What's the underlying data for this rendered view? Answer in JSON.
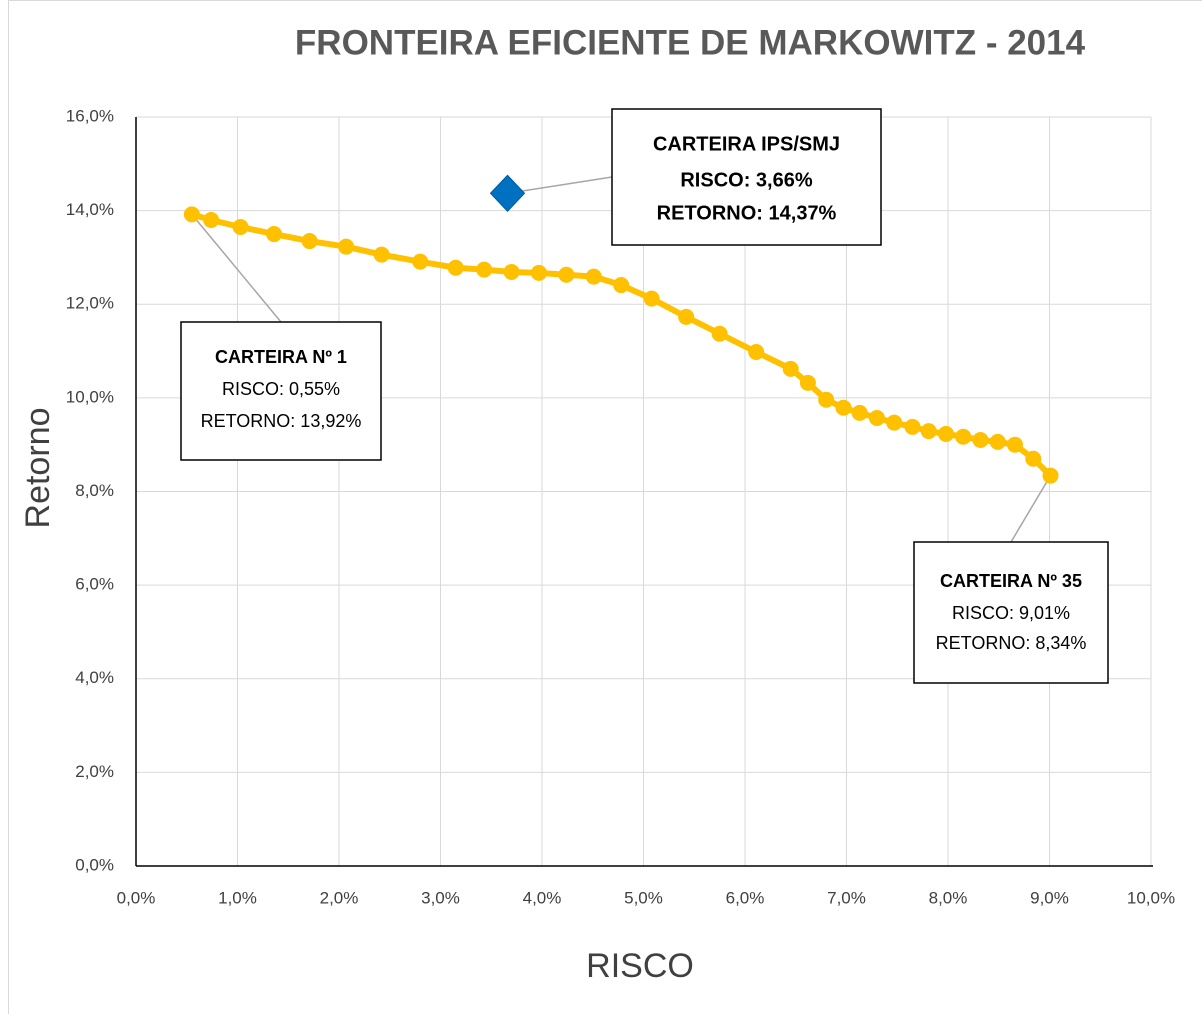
{
  "chart_data": {
    "type": "line",
    "title": "FRONTEIRA EFICIENTE DE MARKOWITZ - 2014",
    "xlabel": "RISCO",
    "ylabel": "Retorno",
    "xlim": [
      0,
      10
    ],
    "ylim": [
      0,
      16
    ],
    "xticks": [
      {
        "value": 0,
        "label": "0,0%"
      },
      {
        "value": 1,
        "label": "1,0%"
      },
      {
        "value": 2,
        "label": "2,0%"
      },
      {
        "value": 3,
        "label": "3,0%"
      },
      {
        "value": 4,
        "label": "4,0%"
      },
      {
        "value": 5,
        "label": "5,0%"
      },
      {
        "value": 6,
        "label": "6,0%"
      },
      {
        "value": 7,
        "label": "7,0%"
      },
      {
        "value": 8,
        "label": "8,0%"
      },
      {
        "value": 9,
        "label": "9,0%"
      },
      {
        "value": 10,
        "label": "10,0%"
      }
    ],
    "yticks": [
      {
        "value": 0,
        "label": "0,0%"
      },
      {
        "value": 2,
        "label": "2,0%"
      },
      {
        "value": 4,
        "label": "4,0%"
      },
      {
        "value": 6,
        "label": "6,0%"
      },
      {
        "value": 8,
        "label": "8,0%"
      },
      {
        "value": 10,
        "label": "10,0%"
      },
      {
        "value": 12,
        "label": "12,0%"
      },
      {
        "value": 14,
        "label": "14,0%"
      },
      {
        "value": 16,
        "label": "16,0%"
      }
    ],
    "grid": true,
    "series": [
      {
        "color": "#FFC000",
        "marker": "circle",
        "x": [
          0.55,
          0.74,
          1.03,
          1.36,
          1.71,
          2.07,
          2.42,
          2.8,
          3.15,
          3.43,
          3.7,
          3.97,
          4.24,
          4.51,
          4.78,
          5.08,
          5.42,
          5.75,
          6.11,
          6.45,
          6.62,
          6.8,
          6.97,
          7.13,
          7.3,
          7.47,
          7.65,
          7.81,
          7.98,
          8.15,
          8.32,
          8.49,
          8.66,
          8.84,
          9.01
        ],
        "values": [
          13.92,
          13.8,
          13.65,
          13.5,
          13.35,
          13.23,
          13.06,
          12.91,
          12.78,
          12.74,
          12.69,
          12.67,
          12.63,
          12.59,
          12.41,
          12.12,
          11.73,
          11.37,
          10.98,
          10.62,
          10.32,
          9.96,
          9.79,
          9.68,
          9.57,
          9.47,
          9.38,
          9.29,
          9.23,
          9.17,
          9.1,
          9.06,
          9.0,
          8.7,
          8.34
        ]
      },
      {
        "color": "#0070C0",
        "marker": "diamond",
        "x": [
          3.66
        ],
        "values": [
          14.37
        ]
      }
    ],
    "annotations": [
      {
        "lines": [
          "CARTEIRA Nº 1",
          "RISCO: 0,55%",
          "RETORNO: 13,92%"
        ]
      },
      {
        "lines": [
          "CARTEIRA IPS/SMJ",
          "RISCO: 3,66%",
          "RETORNO: 14,37%"
        ]
      },
      {
        "lines": [
          "CARTEIRA Nº 35",
          "RISCO: 9,01%",
          "RETORNO: 8,34%"
        ]
      }
    ]
  }
}
